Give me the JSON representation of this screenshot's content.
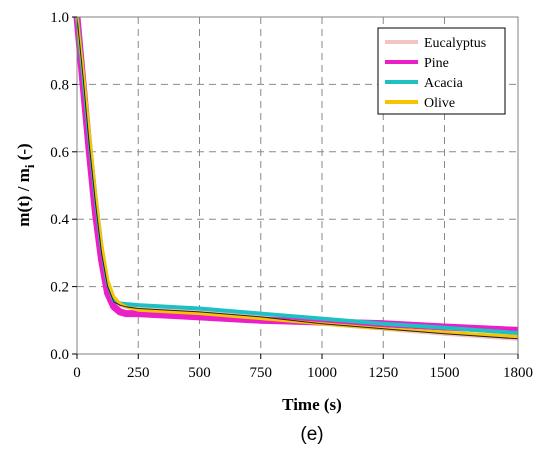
{
  "chart_data": {
    "type": "line",
    "xlabel": "Time (s)",
    "ylabel": "m(t) / m",
    "ylabel_sub": "i",
    "ylabel_suffix": " (-)",
    "xlim": [
      0,
      1800
    ],
    "ylim": [
      0,
      1.0
    ],
    "x_ticks": [
      "0",
      "250",
      "500",
      "750",
      "1000",
      "1250",
      "1500",
      "1800"
    ],
    "x_tick_values": [
      0,
      250,
      500,
      750,
      1000,
      1250,
      1500,
      1800
    ],
    "y_ticks": [
      "0.0",
      "0.2",
      "0.4",
      "0.6",
      "0.8",
      "1.0"
    ],
    "y_tick_values": [
      0.0,
      0.2,
      0.4,
      0.6,
      0.8,
      1.0
    ],
    "grid": true,
    "legend_position": "top-right",
    "series": [
      {
        "name": "Eucalyptus",
        "color": "#f4c3c3",
        "x": [
          0,
          25,
          50,
          75,
          100,
          125,
          150,
          175,
          200,
          250,
          500,
          750,
          1000,
          1250,
          1500,
          1800
        ],
        "y": [
          1.0,
          0.82,
          0.62,
          0.45,
          0.3,
          0.2,
          0.155,
          0.145,
          0.14,
          0.135,
          0.125,
          0.11,
          0.09,
          0.075,
          0.06,
          0.045
        ]
      },
      {
        "name": "Pine",
        "color": "#ec1ec8",
        "x": [
          0,
          25,
          50,
          75,
          100,
          125,
          150,
          175,
          200,
          250,
          500,
          750,
          1000,
          1250,
          1500,
          1800
        ],
        "y": [
          1.0,
          0.8,
          0.6,
          0.42,
          0.28,
          0.18,
          0.14,
          0.125,
          0.12,
          0.12,
          0.11,
          0.1,
          0.095,
          0.09,
          0.08,
          0.07
        ]
      },
      {
        "name": "Acacia",
        "color": "#1ec0c4",
        "x": [
          0,
          25,
          50,
          75,
          100,
          125,
          150,
          175,
          200,
          250,
          500,
          750,
          1000,
          1250,
          1500,
          1800
        ],
        "y": [
          1.0,
          0.83,
          0.64,
          0.47,
          0.32,
          0.21,
          0.16,
          0.15,
          0.148,
          0.145,
          0.135,
          0.12,
          0.105,
          0.09,
          0.078,
          0.062
        ]
      },
      {
        "name": "Olive",
        "color": "#f7c500",
        "x": [
          0,
          25,
          50,
          75,
          100,
          125,
          150,
          175,
          200,
          250,
          500,
          750,
          1000,
          1250,
          1500,
          1800
        ],
        "y": [
          1.0,
          0.84,
          0.66,
          0.48,
          0.33,
          0.22,
          0.17,
          0.15,
          0.14,
          0.13,
          0.12,
          0.105,
          0.09,
          0.075,
          0.065,
          0.052
        ]
      }
    ]
  },
  "panel_label": "(e)"
}
